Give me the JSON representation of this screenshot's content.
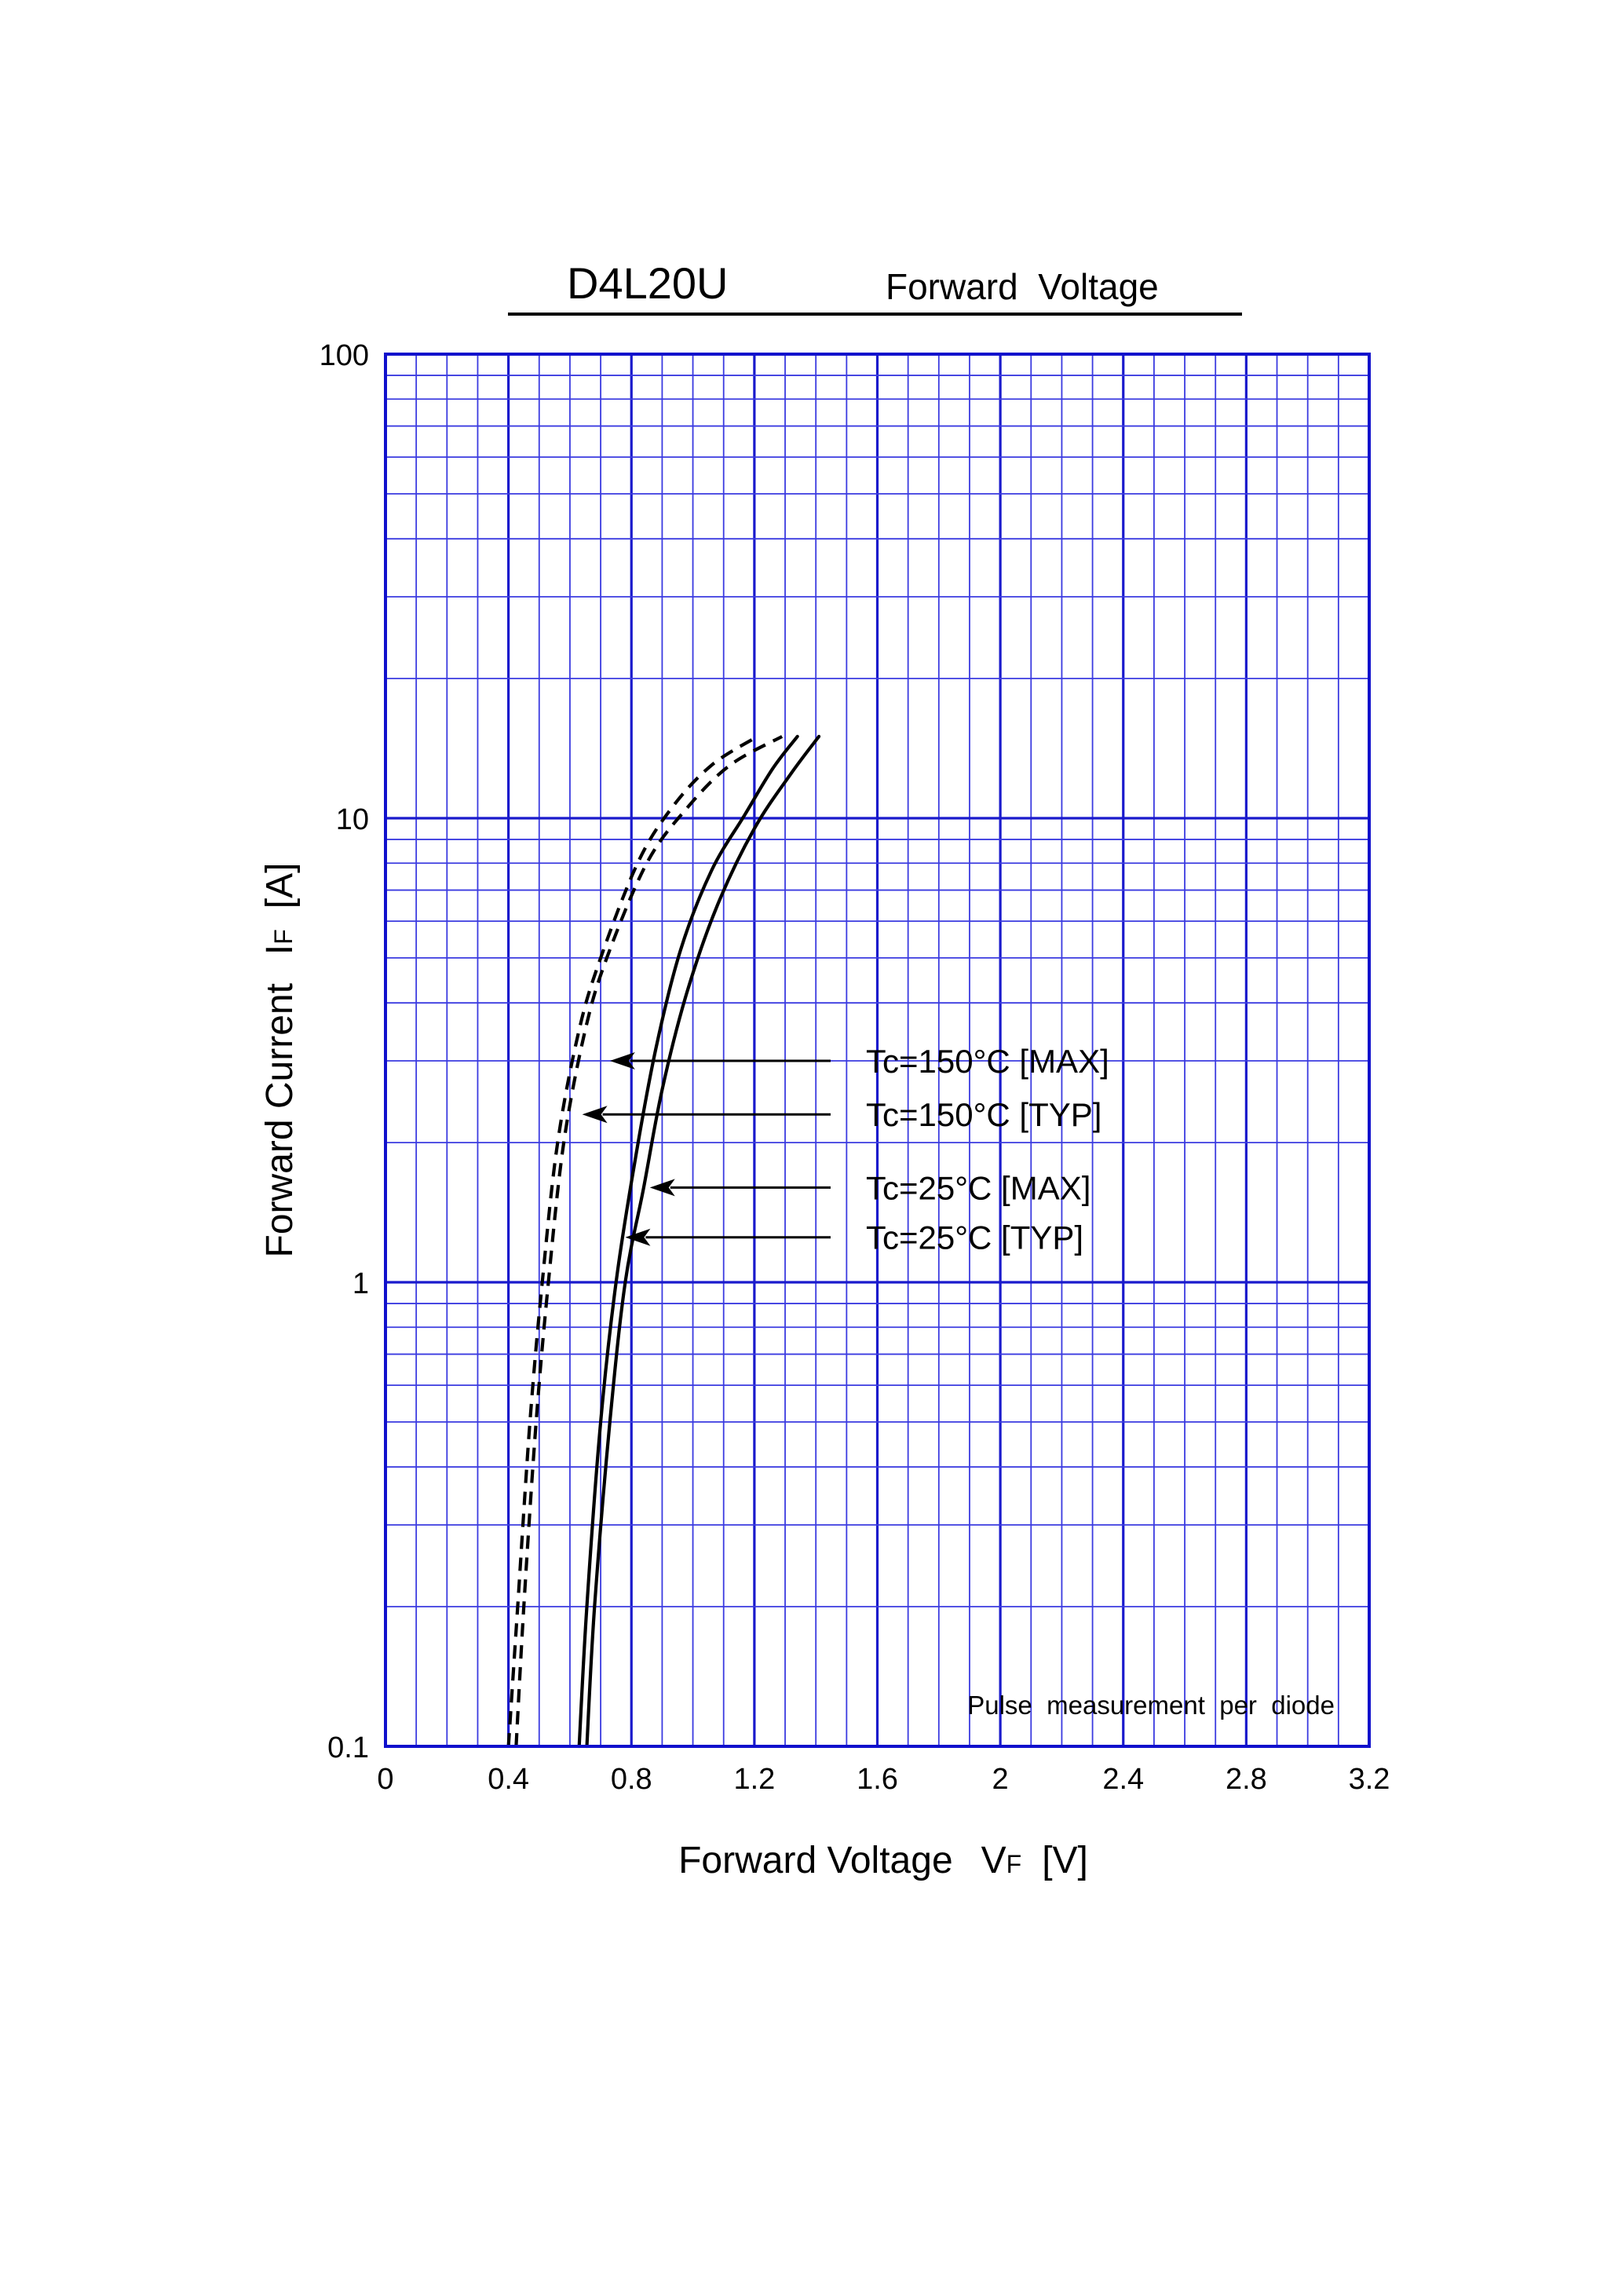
{
  "header": {
    "part_number": "D4L20U",
    "title": "Forward  Voltage"
  },
  "chart_data": {
    "type": "line",
    "title": "Forward  Voltage",
    "xlabel": "Forward Voltage",
    "xlabel_symbol": "V",
    "xlabel_subscript": "F",
    "xlabel_unit": "[V]",
    "ylabel": "Forward Current",
    "ylabel_symbol": "I",
    "ylabel_subscript": "F",
    "ylabel_unit": "[A]",
    "xlim": [
      0,
      3.2
    ],
    "ylim": [
      0.1,
      100
    ],
    "yscale": "log",
    "grid": true,
    "x_ticks": [
      0,
      0.4,
      0.8,
      1.2,
      1.6,
      2,
      2.4,
      2.8,
      3.2
    ],
    "x_tick_labels": [
      "0",
      "0.4",
      "0.8",
      "1.2",
      "1.6",
      "2",
      "2.4",
      "2.8",
      "3.2"
    ],
    "y_ticks": [
      0.1,
      1,
      10,
      100
    ],
    "y_tick_labels": [
      "0.1",
      "1",
      "10",
      "100"
    ],
    "note": "Pulse  measurement  per  diode",
    "series": [
      {
        "name": "Tc=150°C [MAX]",
        "line_style": "dashed",
        "label_y": 3.0,
        "arrow_tip": {
          "x": 0.73,
          "y": 3.0
        },
        "points": [
          [
            0.425,
            0.1
          ],
          [
            0.45,
            0.2
          ],
          [
            0.49,
            0.5
          ],
          [
            0.53,
            1.0
          ],
          [
            0.58,
            2.0
          ],
          [
            0.65,
            3.5
          ],
          [
            0.72,
            5.0
          ],
          [
            0.85,
            8.0
          ],
          [
            0.98,
            10.5
          ],
          [
            1.12,
            13.0
          ],
          [
            1.29,
            15.0
          ]
        ]
      },
      {
        "name": "Tc=150°C [TYP]",
        "line_style": "dashed",
        "label_y": 2.3,
        "arrow_tip": {
          "x": 0.64,
          "y": 2.3
        },
        "points": [
          [
            0.4,
            0.1
          ],
          [
            0.43,
            0.2
          ],
          [
            0.47,
            0.5
          ],
          [
            0.51,
            1.0
          ],
          [
            0.56,
            2.0
          ],
          [
            0.63,
            3.5
          ],
          [
            0.7,
            5.0
          ],
          [
            0.82,
            8.0
          ],
          [
            0.93,
            10.5
          ],
          [
            1.06,
            13.0
          ],
          [
            1.21,
            15.0
          ]
        ]
      },
      {
        "name": "Tc=25°C [MAX]",
        "line_style": "solid",
        "label_y": 1.6,
        "arrow_tip": {
          "x": 0.86,
          "y": 1.6
        },
        "points": [
          [
            0.655,
            0.1
          ],
          [
            0.68,
            0.2
          ],
          [
            0.73,
            0.5
          ],
          [
            0.78,
            1.0
          ],
          [
            0.84,
            1.6
          ],
          [
            0.9,
            2.6
          ],
          [
            0.98,
            4.2
          ],
          [
            1.08,
            6.5
          ],
          [
            1.2,
            9.5
          ],
          [
            1.32,
            12.5
          ],
          [
            1.41,
            15.0
          ]
        ]
      },
      {
        "name": "Tc=25°C [TYP]",
        "line_style": "solid",
        "label_y": 1.25,
        "arrow_tip": {
          "x": 0.78,
          "y": 1.25
        },
        "points": [
          [
            0.63,
            0.1
          ],
          [
            0.655,
            0.2
          ],
          [
            0.7,
            0.5
          ],
          [
            0.75,
            1.0
          ],
          [
            0.81,
            1.8
          ],
          [
            0.88,
            3.2
          ],
          [
            0.96,
            5.2
          ],
          [
            1.06,
            7.7
          ],
          [
            1.17,
            10.2
          ],
          [
            1.26,
            12.8
          ],
          [
            1.34,
            15.0
          ]
        ]
      }
    ]
  }
}
